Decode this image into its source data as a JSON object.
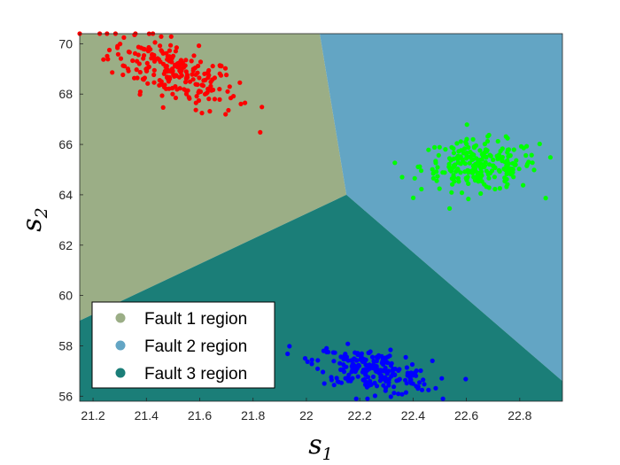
{
  "chart_data": {
    "type": "scatter",
    "title": "",
    "xlabel": "s",
    "xlabel_sub": "1",
    "ylabel": "s",
    "ylabel_sub": "2",
    "xlim": [
      21.15,
      22.96
    ],
    "ylim": [
      55.8,
      70.4
    ],
    "xticks": [
      "21.2",
      "21.4",
      "21.6",
      "21.8",
      "22",
      "22.2",
      "22.4",
      "22.6",
      "22.8"
    ],
    "yticks": [
      "56",
      "58",
      "60",
      "62",
      "64",
      "66",
      "68",
      "70"
    ],
    "grid": false,
    "legend_position": "bottom-left",
    "regions": [
      {
        "name": "Fault 1 region",
        "color": "#9bae86",
        "polygon": [
          [
            21.15,
            70.4
          ],
          [
            22.05,
            70.4
          ],
          [
            22.15,
            64.0
          ],
          [
            21.15,
            59.0
          ]
        ]
      },
      {
        "name": "Fault 2 region",
        "color": "#63a5c4",
        "polygon": [
          [
            22.05,
            70.4
          ],
          [
            22.96,
            70.4
          ],
          [
            22.96,
            56.6
          ],
          [
            22.15,
            64.0
          ]
        ]
      },
      {
        "name": "Fault 3 region",
        "color": "#1b7e78",
        "polygon": [
          [
            21.15,
            59.0
          ],
          [
            22.15,
            64.0
          ],
          [
            22.96,
            56.6
          ],
          [
            22.96,
            55.8
          ],
          [
            21.15,
            55.8
          ]
        ]
      }
    ],
    "series": [
      {
        "color": "#ff0000",
        "center": [
          21.5,
          68.9
        ],
        "spread": [
          0.12,
          0.75
        ],
        "corr": -0.6,
        "count": 230
      },
      {
        "color": "#00ff00",
        "center": [
          22.65,
          65.15
        ],
        "spread": [
          0.11,
          0.5
        ],
        "corr": 0.0,
        "count": 230
      },
      {
        "color": "#0000ff",
        "center": [
          22.25,
          57.0
        ],
        "spread": [
          0.11,
          0.45
        ],
        "corr": -0.45,
        "count": 230
      }
    ]
  }
}
